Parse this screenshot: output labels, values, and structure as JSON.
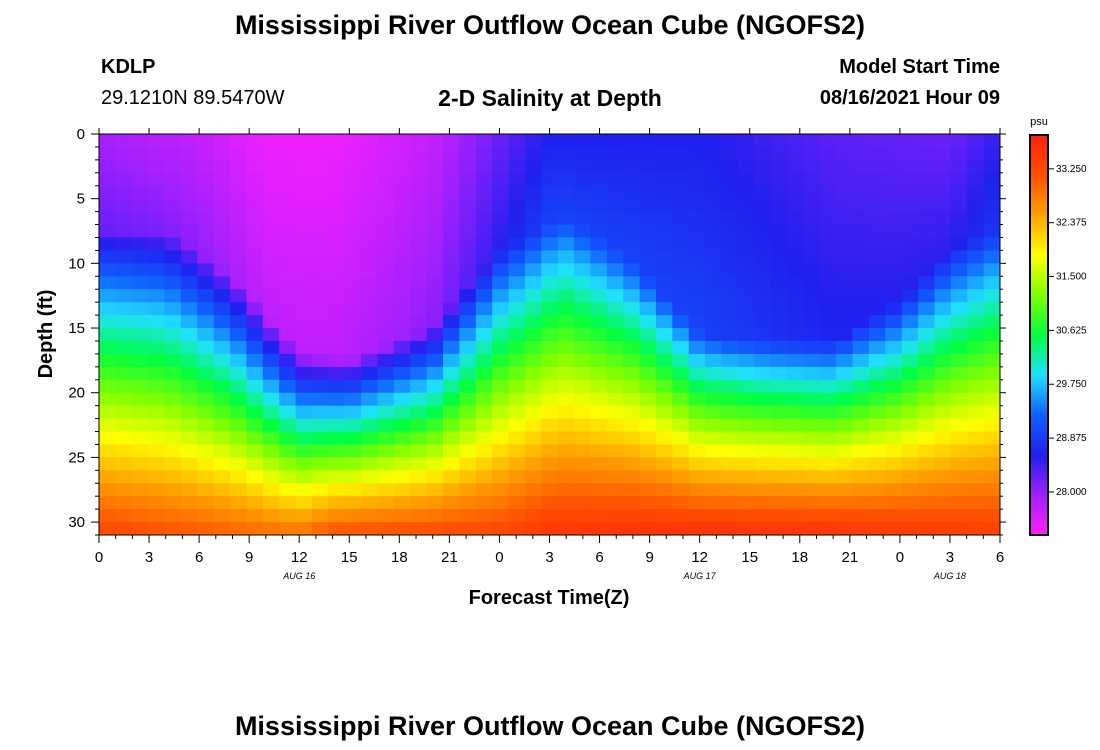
{
  "page": {
    "title_top": "Mississippi River Outflow Ocean Cube (NGOFS2)",
    "title_bottom": "Mississippi River Outflow Ocean Cube (NGOFS2)",
    "station": "KDLP",
    "location": "29.1210N  89.5470W",
    "plot_title": "2-D Salinity at Depth",
    "model_label": "Model Start Time",
    "model_time": "08/16/2021 Hour 09"
  },
  "chart_data": {
    "type": "heatmap",
    "title": "2-D Salinity at Depth",
    "xlabel": "Forecast Time(Z)",
    "ylabel": "Depth (ft)",
    "x_range_hours": [
      0,
      54
    ],
    "y_range_ft": [
      0,
      31
    ],
    "y_reversed": true,
    "x_ticks": [
      "0",
      "3",
      "6",
      "9",
      "12",
      "15",
      "18",
      "21",
      "0",
      "3",
      "6",
      "9",
      "12",
      "15",
      "18",
      "21",
      "0",
      "3",
      "6"
    ],
    "y_ticks": [
      "0",
      "5",
      "10",
      "15",
      "20",
      "25",
      "30"
    ],
    "date_labels": [
      {
        "label": "AUG 16",
        "hour": 12
      },
      {
        "label": "AUG 17",
        "hour": 36
      },
      {
        "label": "AUG 18",
        "hour": 51
      }
    ],
    "colorbar": {
      "unit": "psu",
      "min": 27.3,
      "max": 33.8,
      "ticks": [
        "33.250",
        "32.375",
        "31.500",
        "30.625",
        "29.750",
        "28.875",
        "28.000"
      ],
      "tick_values": [
        33.25,
        32.375,
        31.5,
        30.625,
        29.75,
        28.875,
        28.0
      ]
    },
    "surface_salinity_psu": {
      "hours": [
        0,
        6,
        10,
        14,
        20,
        27,
        36,
        44,
        51,
        54
      ],
      "values": [
        27.9,
        27.7,
        27.4,
        27.4,
        27.7,
        28.6,
        28.6,
        28.3,
        28.2,
        28.5
      ]
    },
    "halocline_depth_ft": {
      "hours": [
        0,
        4,
        8,
        12,
        15,
        20,
        24,
        28,
        32,
        36,
        40,
        44,
        48,
        51,
        54
      ],
      "values": [
        7.5,
        7.5,
        11,
        17,
        17.5,
        15,
        9,
        6.5,
        10,
        15.5,
        16,
        16,
        13,
        9,
        7.5
      ]
    },
    "bottom_salinity_psu": {
      "hours": [
        0,
        12,
        14,
        24,
        27,
        33,
        42,
        48,
        54
      ],
      "values": [
        33.3,
        32.9,
        33.2,
        33.3,
        33.5,
        33.6,
        33.6,
        33.5,
        33.4
      ]
    },
    "colors": {
      "colorbar_stops": [
        "#ff20ff",
        "#a020ff",
        "#2020f0",
        "#1060ff",
        "#20e0ff",
        "#00ff40",
        "#80ff00",
        "#ffff00",
        "#ffa000",
        "#ff5000",
        "#ff2010"
      ]
    }
  }
}
